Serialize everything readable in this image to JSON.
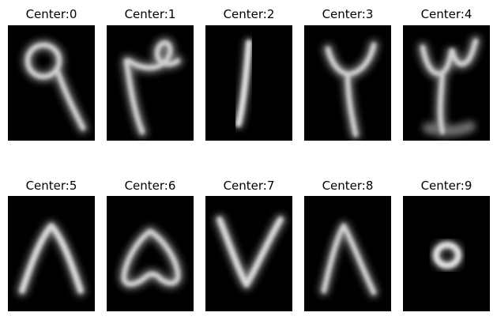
{
  "panels": [
    {
      "title": "Center:0",
      "glyph": "nine-like-loop"
    },
    {
      "title": "Center:1",
      "glyph": "loop-top-with-stem"
    },
    {
      "title": "Center:2",
      "glyph": "vertical-stroke"
    },
    {
      "title": "Center:3",
      "glyph": "two-like"
    },
    {
      "title": "Center:4",
      "glyph": "three-like"
    },
    {
      "title": "Center:5",
      "glyph": "inverted-v"
    },
    {
      "title": "Center:6",
      "glyph": "rounded-triangle"
    },
    {
      "title": "Center:7",
      "glyph": "v-shape"
    },
    {
      "title": "Center:8",
      "glyph": "inverted-v-narrow"
    },
    {
      "title": "Center:9",
      "glyph": "small-ring"
    }
  ],
  "colors": {
    "background": "#000000",
    "stroke": "#d8d8d8",
    "page": "#ffffff"
  }
}
